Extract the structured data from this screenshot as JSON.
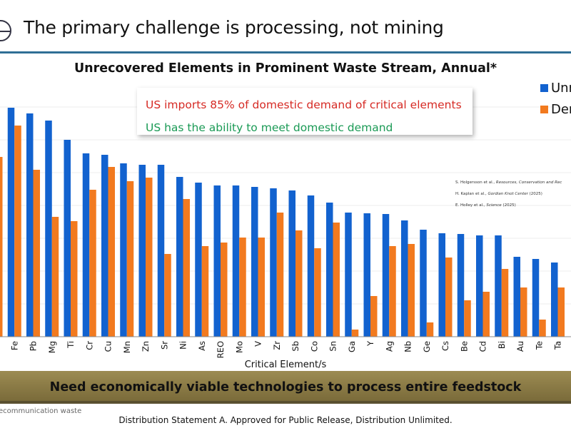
{
  "header": {
    "title": "The primary challenge is processing, not mining"
  },
  "callout": {
    "line1": "US imports 85% of domestic demand of critical elements",
    "line2": "US has the ability to meet domestic demand"
  },
  "references": [
    {
      "authors": "S. Holgersson et al.,",
      "source": "Resources, Conservation and Rec",
      "year": ""
    },
    {
      "authors": "H. Kaplan et al.,",
      "source": "Gordian Knot Center",
      "year": "(2025)"
    },
    {
      "authors": "E. Holley et al.,",
      "source": "Science",
      "year": "(2025)"
    }
  ],
  "banner": "Need economically viable technologies to process entire feedstock",
  "footnote": "ecommunication waste",
  "distribution": "Distribution Statement A. Approved for Public Release, Distribution Unlimited.",
  "colors": {
    "unrecovered": "#1262cf",
    "demand": "#f27a1f"
  },
  "chart_data": {
    "type": "bar",
    "title": "Unrecovered Elements in Prominent Waste Stream, Annual*",
    "xlabel": "Critical Element/s",
    "ylabel": "",
    "legend": {
      "placement": "top-right",
      "entries": [
        "Unr",
        "Dem"
      ]
    },
    "grid": true,
    "ylim": [
      0,
      360
    ],
    "categories": [
      "",
      "Fe",
      "Pb",
      "Mg",
      "Ti",
      "Cr",
      "Cu",
      "Mn",
      "Zn",
      "Sr",
      "Ni",
      "As",
      "REO",
      "Mo",
      "V",
      "Zr",
      "Sb",
      "Co",
      "Sn",
      "Ga",
      "Y",
      "Ag",
      "Nb",
      "Ge",
      "Cs",
      "Be",
      "Cd",
      "Bi",
      "Au",
      "Te",
      "Ta"
    ],
    "series": [
      {
        "name": "Unrecovered",
        "values": [
          null,
          321,
          313,
          303,
          276,
          257,
          255,
          243,
          241,
          241,
          224,
          216,
          212,
          212,
          210,
          208,
          205,
          198,
          188,
          174,
          173,
          172,
          163,
          150,
          145,
          144,
          142,
          142,
          112,
          109,
          104
        ]
      },
      {
        "name": "Demand",
        "values": [
          252,
          296,
          234,
          168,
          162,
          206,
          238,
          218,
          223,
          116,
          193,
          127,
          132,
          139,
          139,
          174,
          149,
          124,
          160,
          10,
          57,
          127,
          130,
          20,
          111,
          51,
          63,
          95,
          69,
          24,
          69
        ]
      }
    ]
  }
}
